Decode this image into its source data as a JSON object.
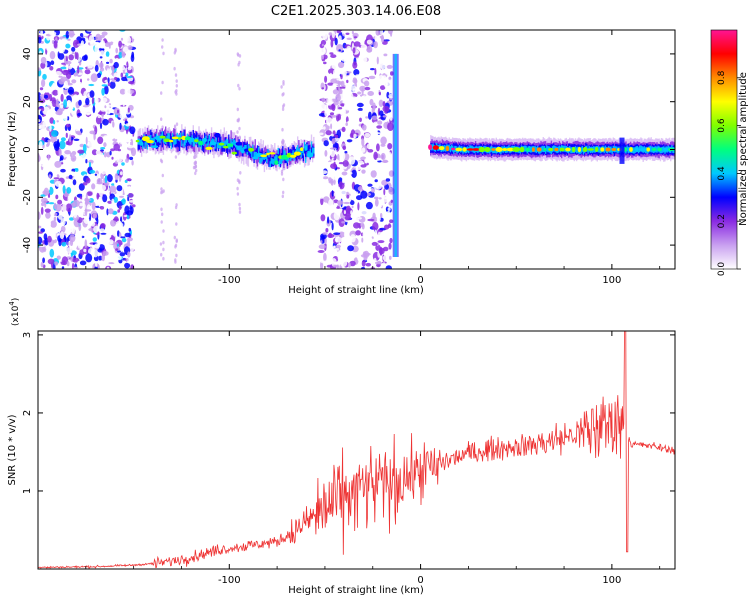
{
  "chart_data": [
    {
      "type": "heatmap",
      "title": "C2E1.2025.303.14.06.E08",
      "xlabel": "Height of straight line (km)",
      "ylabel": "Frequency (Hz)",
      "xlim": [
        -200,
        133
      ],
      "ylim": [
        -50,
        50
      ],
      "xticks": [
        -100,
        0,
        100
      ],
      "yticks": [
        -40,
        -20,
        0,
        20,
        40
      ],
      "colorbar": {
        "label": "Normalized spectral amplitude",
        "range": [
          0,
          1
        ],
        "ticks": [
          "0.0",
          "0.2",
          "0.4",
          "0.6",
          "0.8"
        ],
        "colors": [
          "#ffffff",
          "#c9a0f0",
          "#8a2be2",
          "#0000ff",
          "#00c8ff",
          "#00ff7f",
          "#7fff00",
          "#ffff00",
          "#ff8c00",
          "#ff0000",
          "#ff1493"
        ]
      },
      "ridge": [
        {
          "x": -148,
          "f": 3,
          "amp": 0.55
        },
        {
          "x": -140,
          "f": 4,
          "amp": 0.6
        },
        {
          "x": -130,
          "f": 4,
          "amp": 0.62
        },
        {
          "x": -120,
          "f": 4,
          "amp": 0.58
        },
        {
          "x": -110,
          "f": 3,
          "amp": 0.55
        },
        {
          "x": -100,
          "f": 2,
          "amp": 0.52
        },
        {
          "x": -92,
          "f": 0,
          "amp": 0.5
        },
        {
          "x": -85,
          "f": -2,
          "amp": 0.52
        },
        {
          "x": -78,
          "f": -4,
          "amp": 0.55
        },
        {
          "x": -70,
          "f": -3,
          "amp": 0.58
        },
        {
          "x": -62,
          "f": -1,
          "amp": 0.6
        },
        {
          "x": -56,
          "f": 0,
          "amp": 0.5
        },
        {
          "x": 5,
          "f": 1,
          "amp": 0.9
        },
        {
          "x": 20,
          "f": 0,
          "amp": 0.85
        },
        {
          "x": 40,
          "f": 0,
          "amp": 0.75
        },
        {
          "x": 60,
          "f": 0,
          "amp": 0.72
        },
        {
          "x": 80,
          "f": 0,
          "amp": 0.75
        },
        {
          "x": 100,
          "f": 0,
          "amp": 0.7
        },
        {
          "x": 120,
          "f": 0,
          "amp": 0.55
        }
      ],
      "noise_regions": [
        {
          "x0": -200,
          "x1": -150,
          "amp": 0.35
        },
        {
          "x0": -52,
          "x1": -15,
          "amp": 0.25
        }
      ],
      "spike": {
        "x": -13,
        "f0": -45,
        "f1": 40
      }
    },
    {
      "type": "line",
      "xlabel": "Height of straight line (km)",
      "ylabel": "SNR (10 * v/v)",
      "multiplier": "(x10",
      "multiplier_exp": "4",
      "multiplier_close": ")",
      "xlim": [
        -200,
        133
      ],
      "ylim": [
        0,
        3.05
      ],
      "xticks": [
        -100,
        0,
        100
      ],
      "yticks": [
        1,
        2,
        3
      ],
      "line_color": "#ee3333",
      "envelope": [
        [
          -200,
          0.02
        ],
        [
          -170,
          0.03
        ],
        [
          -150,
          0.05
        ],
        [
          -135,
          0.08
        ],
        [
          -120,
          0.15
        ],
        [
          -105,
          0.25
        ],
        [
          -90,
          0.3
        ],
        [
          -75,
          0.35
        ],
        [
          -65,
          0.5
        ],
        [
          -55,
          0.7
        ],
        [
          -45,
          0.85
        ],
        [
          -35,
          0.95
        ],
        [
          -25,
          1.05
        ],
        [
          -15,
          1.1
        ],
        [
          -5,
          1.2
        ],
        [
          5,
          1.3
        ],
        [
          15,
          1.4
        ],
        [
          25,
          1.48
        ],
        [
          40,
          1.55
        ],
        [
          55,
          1.58
        ],
        [
          70,
          1.65
        ],
        [
          85,
          1.75
        ],
        [
          98,
          1.85
        ],
        [
          104,
          1.9
        ],
        [
          107,
          1.8
        ],
        [
          110,
          1.6
        ],
        [
          120,
          1.58
        ],
        [
          133,
          1.52
        ]
      ],
      "peaks": [
        {
          "x": -31,
          "y": 1.15
        },
        {
          "x": -20,
          "y": 1.3
        },
        {
          "x": 8,
          "y": 1.2
        },
        {
          "x": 90,
          "y": 2.05
        },
        {
          "x": 107,
          "y": 3.05
        },
        {
          "x": 108,
          "y": 0.22
        }
      ]
    }
  ]
}
